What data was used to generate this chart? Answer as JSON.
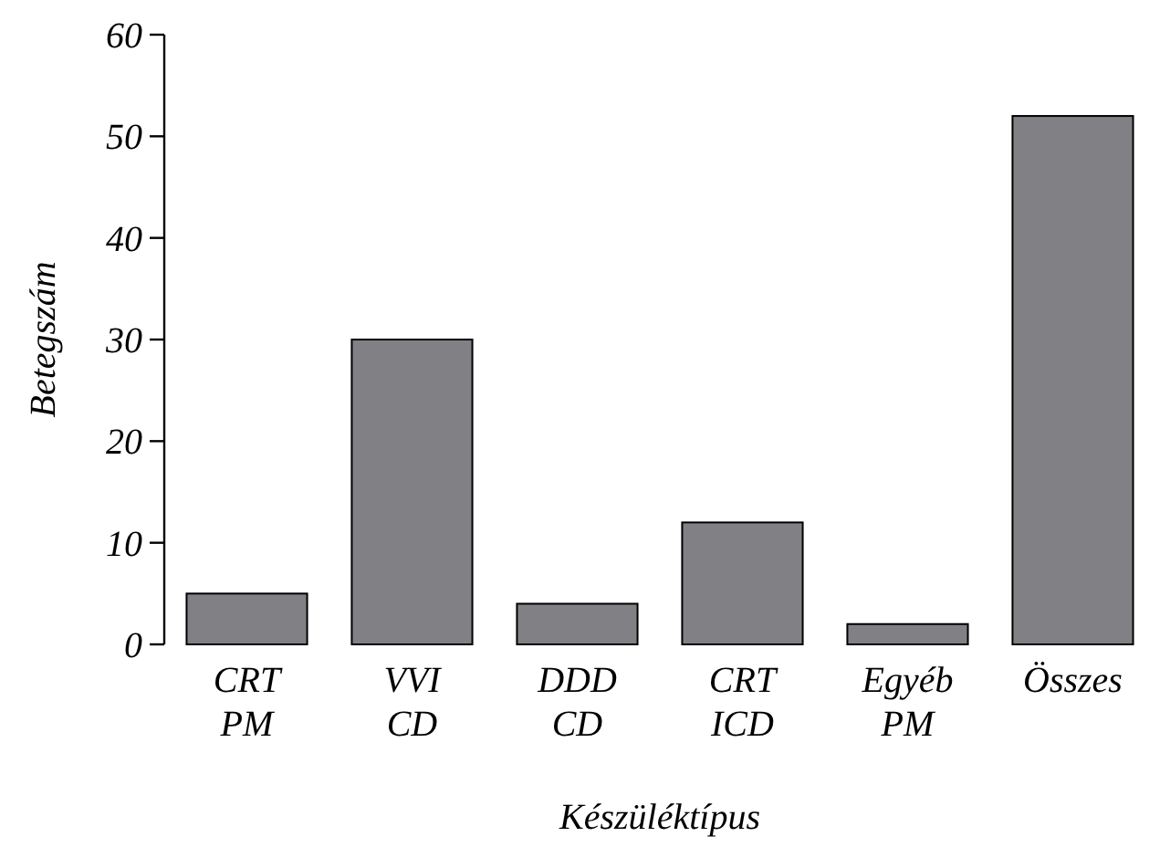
{
  "chart_data": {
    "type": "bar",
    "xlabel": "Készüléktípus",
    "ylabel": "Betegszám",
    "categories": [
      "CRT PM",
      "VVI CD",
      "DDD CD",
      "CRT ICD",
      "Egyéb PM",
      "Összes"
    ],
    "values": [
      5,
      30,
      4,
      12,
      2,
      52
    ],
    "color": "#808085",
    "ylim": [
      0,
      60
    ],
    "yticks": [
      0,
      10,
      20,
      30,
      40,
      50,
      60
    ],
    "grid": false
  }
}
